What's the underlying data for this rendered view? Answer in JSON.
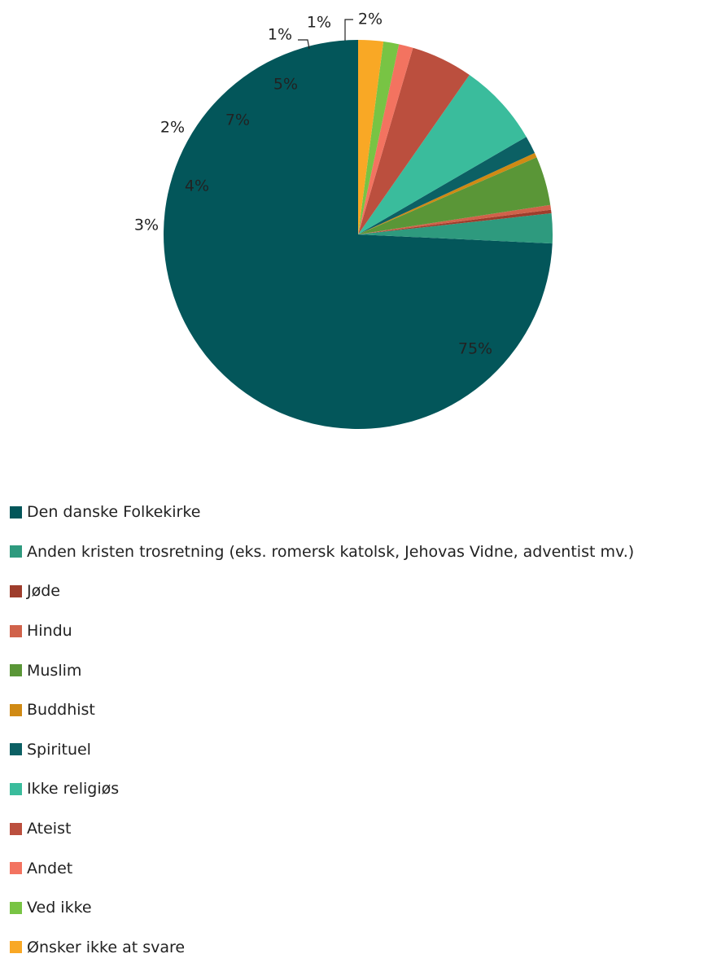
{
  "chart_data": {
    "type": "pie",
    "title": "",
    "legend_position": "bottom",
    "slices": [
      {
        "name": "Den danske Folkekirke",
        "value": 75,
        "label": "75%",
        "color": "#03565A"
      },
      {
        "name": "Anden kristen trosretning (eks. romersk katolsk, Jehovas Vidne, adventist mv.)",
        "value": 2.5,
        "label": "3%",
        "color": "#2E9A7E"
      },
      {
        "name": "Jøde",
        "value": 0.3,
        "label": "",
        "color": "#9E3D2C"
      },
      {
        "name": "Hindu",
        "value": 0.4,
        "label": "",
        "color": "#D0624A"
      },
      {
        "name": "Muslim",
        "value": 4.1,
        "label": "4%",
        "color": "#5A9637"
      },
      {
        "name": "Buddhist",
        "value": 0.4,
        "label": "",
        "color": "#D08A14"
      },
      {
        "name": "Spirituel",
        "value": 1.5,
        "label": "2%",
        "color": "#0C6064"
      },
      {
        "name": "Ikke religiøs",
        "value": 7,
        "label": "7%",
        "color": "#3ABC9C"
      },
      {
        "name": "Ateist",
        "value": 5.2,
        "label": "5%",
        "color": "#BB4F3E"
      },
      {
        "name": "Andet",
        "value": 1.2,
        "label": "1%",
        "color": "#F37360"
      },
      {
        "name": "Ved ikke",
        "value": 1.3,
        "label": "1%",
        "color": "#78C444"
      },
      {
        "name": "Ønsker ikke at svare",
        "value": 2.1,
        "label": "2%",
        "color": "#F9A825"
      }
    ]
  }
}
